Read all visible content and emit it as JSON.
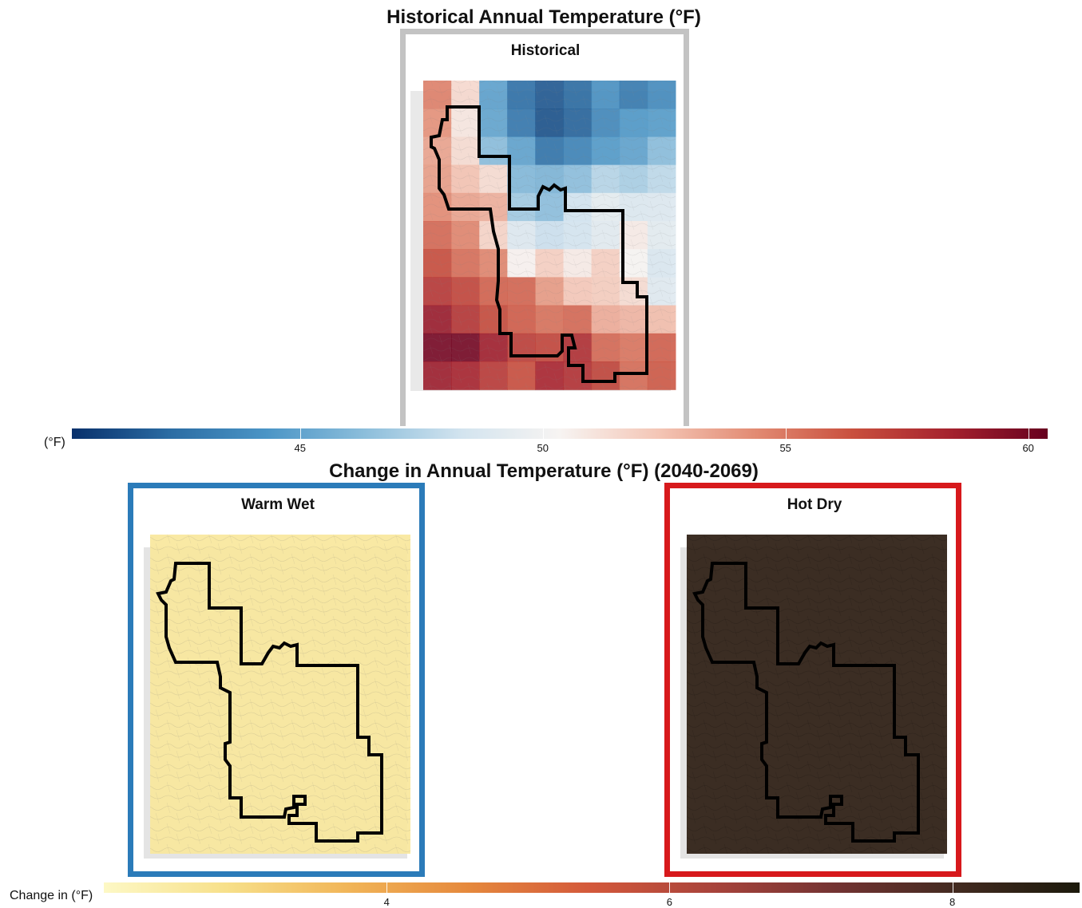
{
  "titles": {
    "historical": "Historical Annual Temperature (°F)",
    "change": "Change in Annual Temperature (°F) (2040-2069)"
  },
  "panels": {
    "historical": {
      "label": "Historical",
      "frame_color": "#c3c3c3"
    },
    "warm_wet": {
      "label": "Warm Wet",
      "frame_color": "#2b7bb9",
      "fill_color": "#fdfad0"
    },
    "hot_dry": {
      "label": "Hot Dry",
      "frame_color": "#d7191c",
      "fill_color": "#46402a"
    }
  },
  "colorbars": {
    "historical": {
      "label": "(°F)",
      "range": [
        40.3,
        60.4
      ],
      "colors": [
        "#08306b",
        "#2b6ca3",
        "#4b95c6",
        "#8cbedb",
        "#d3e4ef",
        "#f7f4f2",
        "#f4c6b6",
        "#e28b73",
        "#c9503e",
        "#a5222e",
        "#67001f"
      ],
      "ticks": [
        {
          "value": 45,
          "label": "45"
        },
        {
          "value": 50,
          "label": "50"
        },
        {
          "value": 55,
          "label": "55"
        },
        {
          "value": 60,
          "label": "60"
        }
      ]
    },
    "change": {
      "label": "Change in (°F)",
      "range": [
        2.0,
        8.9
      ],
      "colors": [
        "#fdf8c5",
        "#f7e08a",
        "#f1b558",
        "#e5883c",
        "#d3583b",
        "#a8433b",
        "#733332",
        "#422a20",
        "#1c1a0c"
      ],
      "ticks": [
        {
          "value": 4,
          "label": "4"
        },
        {
          "value": 6,
          "label": "6"
        },
        {
          "value": 8,
          "label": "8"
        }
      ]
    }
  },
  "historical_grid": {
    "description_units": "°F",
    "values": [
      [
        54.8,
        51.6,
        44.8,
        42.4,
        41.6,
        42.2,
        44.0,
        42.9,
        43.7
      ],
      [
        54.2,
        51.0,
        45.0,
        42.8,
        41.4,
        42.0,
        43.6,
        44.4,
        44.6
      ],
      [
        53.6,
        51.5,
        46.2,
        44.9,
        42.6,
        43.4,
        44.5,
        44.9,
        46.2
      ],
      [
        53.8,
        52.5,
        51.5,
        46.0,
        45.8,
        46.3,
        47.5,
        47.1,
        47.7
      ],
      [
        54.4,
        53.6,
        53.2,
        46.9,
        46.3,
        48.3,
        49.3,
        48.8,
        48.9
      ],
      [
        55.6,
        54.6,
        51.8,
        48.9,
        48.1,
        48.4,
        49.1,
        50.8,
        49.2
      ],
      [
        56.6,
        55.4,
        54.6,
        50.5,
        52.0,
        50.8,
        52.0,
        50.3,
        48.7
      ],
      [
        57.5,
        56.9,
        55.8,
        55.7,
        53.9,
        52.3,
        52.1,
        51.5,
        49.0
      ],
      [
        58.8,
        57.6,
        56.7,
        56.0,
        55.3,
        55.6,
        53.3,
        53.0,
        52.7
      ],
      [
        59.9,
        60.0,
        58.6,
        57.2,
        56.9,
        57.9,
        55.6,
        55.2,
        55.9
      ],
      [
        58.7,
        58.4,
        57.4,
        56.5,
        58.3,
        57.8,
        57.0,
        55.5,
        56.1
      ]
    ]
  },
  "change_values": {
    "warm_wet": 2.6,
    "hot_dry": 8.4
  }
}
